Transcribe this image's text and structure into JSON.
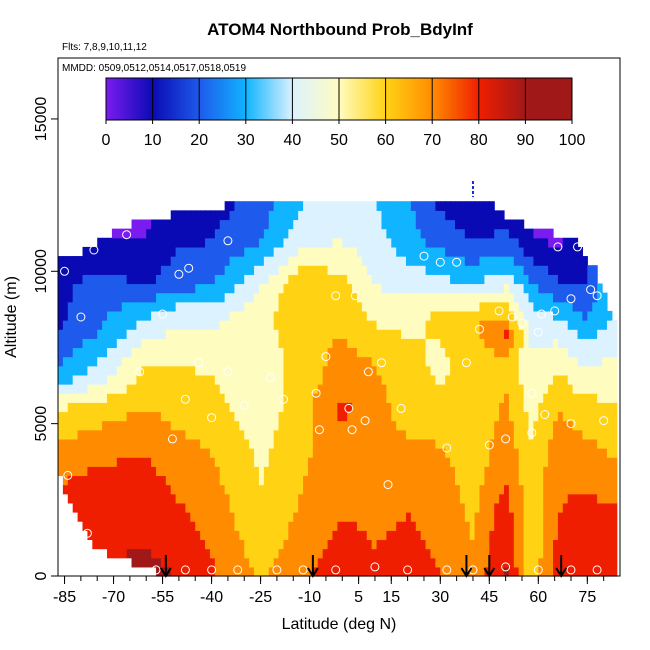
{
  "chart_data": {
    "type": "heatmap",
    "title": "ATOM4 Northbound Prob_BdyInf",
    "subtitle_flights": "Flts: 7,8,9,10,11,12",
    "subtitle_dates": "MMDD: 0509,0512,0514,0517,0518,0519",
    "xlabel": "Latitude (deg N)",
    "ylabel": "Altitude (m)",
    "xlim": [
      -87,
      85
    ],
    "ylim": [
      0,
      17000
    ],
    "x_ticks": [
      -85,
      -70,
      -55,
      -40,
      -25,
      -10,
      5,
      15,
      30,
      45,
      60,
      75
    ],
    "x_tick_labels": [
      "-85",
      "-70",
      "-55",
      "-40",
      "-25",
      "-10",
      "5",
      "15",
      "30",
      "45",
      "60",
      "75"
    ],
    "y_ticks": [
      0,
      5000,
      10000,
      15000
    ],
    "y_tick_labels": [
      "0",
      "5000",
      "10000",
      "15000"
    ],
    "colorbar": {
      "range": [
        0,
        100
      ],
      "tick_values": [
        0,
        10,
        20,
        30,
        40,
        50,
        60,
        70,
        80,
        90,
        100
      ],
      "tick_labels": [
        "0",
        "10",
        "20",
        "30",
        "40",
        "50",
        "60",
        "70",
        "80",
        "90",
        "100"
      ],
      "colors": [
        "#7a1cf0",
        "#0a0ab4",
        "#1e5aeb",
        "#10b4ff",
        "#dcf2ff",
        "#fffcc0",
        "#ffd214",
        "#ff8c00",
        "#f01e00",
        "#a01818"
      ]
    },
    "profile_arrows_lat": [
      -54,
      -9,
      38,
      45,
      67
    ],
    "top_marker_lat": 40,
    "top_marker_alt": 12700,
    "upper_boundary": [
      {
        "lat": -86,
        "alt": 10500
      },
      {
        "lat": -80,
        "alt": 10600
      },
      {
        "lat": -70,
        "alt": 11300
      },
      {
        "lat": -60,
        "alt": 11800
      },
      {
        "lat": -45,
        "alt": 11900
      },
      {
        "lat": -35,
        "alt": 12200
      },
      {
        "lat": -20,
        "alt": 12300
      },
      {
        "lat": 0,
        "alt": 12300
      },
      {
        "lat": 20,
        "alt": 12300
      },
      {
        "lat": 35,
        "alt": 12300
      },
      {
        "lat": 45,
        "alt": 12300
      },
      {
        "lat": 50,
        "alt": 11800
      },
      {
        "lat": 60,
        "alt": 11300
      },
      {
        "lat": 70,
        "alt": 11200
      },
      {
        "lat": 78,
        "alt": 10000
      },
      {
        "lat": 82,
        "alt": 8500
      }
    ],
    "lower_boundary": [
      {
        "lat": -87,
        "alt": 3500
      },
      {
        "lat": -85,
        "alt": 2600
      },
      {
        "lat": -80,
        "alt": 1700
      },
      {
        "lat": -75,
        "alt": 900
      },
      {
        "lat": -70,
        "alt": 600
      },
      {
        "lat": -60,
        "alt": 300
      },
      {
        "lat": -55,
        "alt": 0
      },
      {
        "lat": 82,
        "alt": 0
      }
    ],
    "anchors": [
      {
        "lat": -86,
        "profile": [
          [
            0,
            85
          ],
          [
            2000,
            85
          ],
          [
            4000,
            75
          ],
          [
            5500,
            60
          ],
          [
            6500,
            35
          ],
          [
            8000,
            20
          ],
          [
            10500,
            15
          ]
        ]
      },
      {
        "lat": -75,
        "profile": [
          [
            0,
            90
          ],
          [
            2000,
            88
          ],
          [
            4000,
            78
          ],
          [
            5500,
            65
          ],
          [
            6500,
            45
          ],
          [
            8000,
            30
          ],
          [
            9500,
            25
          ],
          [
            10500,
            15
          ],
          [
            11300,
            8
          ]
        ]
      },
      {
        "lat": -60,
        "profile": [
          [
            0,
            92
          ],
          [
            2000,
            88
          ],
          [
            4000,
            80
          ],
          [
            5500,
            70
          ],
          [
            7000,
            60
          ],
          [
            8500,
            40
          ],
          [
            9500,
            20
          ],
          [
            10500,
            12
          ],
          [
            11800,
            8
          ]
        ]
      },
      {
        "lat": -50,
        "profile": [
          [
            0,
            90
          ],
          [
            2000,
            82
          ],
          [
            4000,
            74
          ],
          [
            5500,
            66
          ],
          [
            7000,
            60
          ],
          [
            8500,
            48
          ],
          [
            9500,
            28
          ],
          [
            11000,
            18
          ],
          [
            12000,
            15
          ]
        ]
      },
      {
        "lat": -40,
        "profile": [
          [
            0,
            82
          ],
          [
            2000,
            76
          ],
          [
            4000,
            70
          ],
          [
            5500,
            64
          ],
          [
            7000,
            58
          ],
          [
            8500,
            46
          ],
          [
            9500,
            30
          ],
          [
            11000,
            20
          ],
          [
            12200,
            16
          ]
        ]
      },
      {
        "lat": -25,
        "profile": [
          [
            0,
            68
          ],
          [
            2000,
            62
          ],
          [
            4000,
            58
          ],
          [
            5500,
            54
          ],
          [
            7000,
            55
          ],
          [
            8500,
            58
          ],
          [
            9500,
            50
          ],
          [
            11000,
            30
          ],
          [
            12300,
            24
          ]
        ]
      },
      {
        "lat": -12,
        "profile": [
          [
            0,
            78
          ],
          [
            2000,
            72
          ],
          [
            4000,
            68
          ],
          [
            5500,
            66
          ],
          [
            7000,
            64
          ],
          [
            8500,
            66
          ],
          [
            9500,
            70
          ],
          [
            11000,
            48
          ],
          [
            12300,
            40
          ]
        ]
      },
      {
        "lat": 0,
        "profile": [
          [
            0,
            86
          ],
          [
            2000,
            80
          ],
          [
            4000,
            76
          ],
          [
            5500,
            82
          ],
          [
            6500,
            76
          ],
          [
            8000,
            70
          ],
          [
            9500,
            64
          ],
          [
            11000,
            50
          ],
          [
            12300,
            44
          ]
        ]
      },
      {
        "lat": 10,
        "profile": [
          [
            0,
            82
          ],
          [
            2000,
            78
          ],
          [
            4000,
            74
          ],
          [
            5500,
            76
          ],
          [
            7000,
            70
          ],
          [
            8500,
            58
          ],
          [
            9500,
            50
          ],
          [
            11000,
            44
          ],
          [
            12300,
            40
          ]
        ]
      },
      {
        "lat": 20,
        "profile": [
          [
            0,
            84
          ],
          [
            2000,
            80
          ],
          [
            4000,
            74
          ],
          [
            5500,
            64
          ],
          [
            7000,
            62
          ],
          [
            8500,
            58
          ],
          [
            9500,
            48
          ],
          [
            11000,
            34
          ],
          [
            12300,
            32
          ]
        ]
      },
      {
        "lat": 30,
        "profile": [
          [
            0,
            80
          ],
          [
            2000,
            76
          ],
          [
            4000,
            72
          ],
          [
            5500,
            62
          ],
          [
            7000,
            58
          ],
          [
            8500,
            62
          ],
          [
            9500,
            45
          ],
          [
            11000,
            26
          ],
          [
            12300,
            18
          ]
        ]
      },
      {
        "lat": 40,
        "profile": [
          [
            0,
            72
          ],
          [
            2000,
            68
          ],
          [
            4000,
            64
          ],
          [
            5500,
            62
          ],
          [
            7000,
            64
          ],
          [
            8500,
            70
          ],
          [
            9500,
            40
          ],
          [
            11000,
            20
          ],
          [
            12300,
            10
          ]
        ]
      },
      {
        "lat": 50,
        "profile": [
          [
            0,
            92
          ],
          [
            2000,
            86
          ],
          [
            4000,
            76
          ],
          [
            5500,
            72
          ],
          [
            7000,
            68
          ],
          [
            8000,
            82
          ],
          [
            9000,
            60
          ],
          [
            10000,
            40
          ],
          [
            11000,
            25
          ],
          [
            11800,
            12
          ]
        ]
      },
      {
        "lat": 58,
        "profile": [
          [
            0,
            64
          ],
          [
            2000,
            62
          ],
          [
            4000,
            62
          ],
          [
            5500,
            56
          ],
          [
            7000,
            52
          ],
          [
            8500,
            45
          ],
          [
            9500,
            32
          ],
          [
            10500,
            18
          ],
          [
            11300,
            10
          ]
        ]
      },
      {
        "lat": 66,
        "profile": [
          [
            0,
            84
          ],
          [
            2000,
            80
          ],
          [
            4000,
            76
          ],
          [
            5500,
            70
          ],
          [
            7000,
            58
          ],
          [
            8500,
            40
          ],
          [
            9500,
            22
          ],
          [
            10500,
            12
          ],
          [
            11200,
            6
          ]
        ]
      },
      {
        "lat": 74,
        "profile": [
          [
            0,
            90
          ],
          [
            2000,
            84
          ],
          [
            4000,
            74
          ],
          [
            5500,
            64
          ],
          [
            7000,
            48
          ],
          [
            8500,
            30
          ],
          [
            9500,
            20
          ],
          [
            10500,
            15
          ]
        ]
      },
      {
        "lat": 82,
        "profile": [
          [
            0,
            88
          ],
          [
            2000,
            82
          ],
          [
            4000,
            70
          ],
          [
            5500,
            62
          ],
          [
            7000,
            52
          ],
          [
            8500,
            38
          ]
        ]
      }
    ],
    "observations": [
      {
        "lat": -85,
        "alt": 10000
      },
      {
        "lat": -76,
        "alt": 10700
      },
      {
        "lat": -72,
        "alt": 11300
      },
      {
        "lat": -66,
        "alt": 11200
      },
      {
        "lat": -50,
        "alt": 9900
      },
      {
        "lat": -47,
        "alt": 10100
      },
      {
        "lat": -35,
        "alt": 11000
      },
      {
        "lat": -80,
        "alt": 8500
      },
      {
        "lat": -62,
        "alt": 6700
      },
      {
        "lat": -55,
        "alt": 8600
      },
      {
        "lat": -44,
        "alt": 7000
      },
      {
        "lat": -35,
        "alt": 6700
      },
      {
        "lat": -22,
        "alt": 6500
      },
      {
        "lat": -8,
        "alt": 6000
      },
      {
        "lat": -5,
        "alt": 7200
      },
      {
        "lat": -2,
        "alt": 9200
      },
      {
        "lat": 4,
        "alt": 9200
      },
      {
        "lat": 8,
        "alt": 6700
      },
      {
        "lat": 12,
        "alt": 7000
      },
      {
        "lat": -48,
        "alt": 5800
      },
      {
        "lat": -40,
        "alt": 5200
      },
      {
        "lat": -30,
        "alt": 5600
      },
      {
        "lat": -18,
        "alt": 5800
      },
      {
        "lat": 2,
        "alt": 5500
      },
      {
        "lat": 7,
        "alt": 5100
      },
      {
        "lat": 18,
        "alt": 5500
      },
      {
        "lat": -52,
        "alt": 4500
      },
      {
        "lat": -7,
        "alt": 4800
      },
      {
        "lat": 3,
        "alt": 4800
      },
      {
        "lat": 14,
        "alt": 3000
      },
      {
        "lat": 32,
        "alt": 4200
      },
      {
        "lat": 45,
        "alt": 4300
      },
      {
        "lat": 50,
        "alt": 4500
      },
      {
        "lat": 58,
        "alt": 4700
      },
      {
        "lat": 62,
        "alt": 5300
      },
      {
        "lat": 70,
        "alt": 5000
      },
      {
        "lat": 80,
        "alt": 5100
      },
      {
        "lat": 38,
        "alt": 7000
      },
      {
        "lat": 42,
        "alt": 8100
      },
      {
        "lat": 48,
        "alt": 8700
      },
      {
        "lat": 52,
        "alt": 8500
      },
      {
        "lat": 55,
        "alt": 8300
      },
      {
        "lat": 60,
        "alt": 8000
      },
      {
        "lat": 65,
        "alt": 8700
      },
      {
        "lat": 70,
        "alt": 9100
      },
      {
        "lat": 76,
        "alt": 9400
      },
      {
        "lat": 66,
        "alt": 10800
      },
      {
        "lat": 72,
        "alt": 10800
      },
      {
        "lat": 78,
        "alt": 9200
      },
      {
        "lat": 25,
        "alt": 10500
      },
      {
        "lat": 30,
        "alt": 10300
      },
      {
        "lat": 35,
        "alt": 10300
      },
      {
        "lat": -84,
        "alt": 3300
      },
      {
        "lat": -78,
        "alt": 1400
      },
      {
        "lat": -57,
        "alt": 200
      },
      {
        "lat": -48,
        "alt": 200
      },
      {
        "lat": -40,
        "alt": 200
      },
      {
        "lat": -32,
        "alt": 200
      },
      {
        "lat": -20,
        "alt": 200
      },
      {
        "lat": -12,
        "alt": 200
      },
      {
        "lat": -2,
        "alt": 200
      },
      {
        "lat": 10,
        "alt": 300
      },
      {
        "lat": 20,
        "alt": 200
      },
      {
        "lat": 32,
        "alt": 200
      },
      {
        "lat": 40,
        "alt": 200
      },
      {
        "lat": 50,
        "alt": 300
      },
      {
        "lat": 60,
        "alt": 200
      },
      {
        "lat": 70,
        "alt": 200
      },
      {
        "lat": 78,
        "alt": 200
      },
      {
        "lat": 61,
        "alt": 8600
      },
      {
        "lat": 58,
        "alt": 6000
      }
    ]
  }
}
